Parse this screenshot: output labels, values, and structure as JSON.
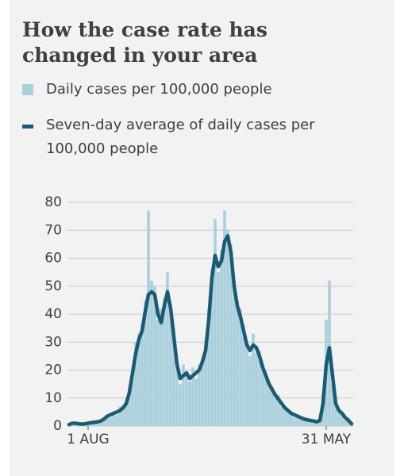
{
  "chart_data": {
    "type": "bar",
    "title": "How the case rate has changed in your area",
    "categories": [
      null,
      null,
      null,
      null,
      null,
      null,
      "1 AUG",
      null,
      null,
      null,
      null,
      null,
      null,
      null,
      null,
      null,
      null,
      null,
      null,
      null,
      null,
      null,
      null,
      null,
      null,
      null,
      null,
      null,
      null,
      null,
      null,
      null,
      null,
      null,
      null,
      null,
      null,
      null,
      null,
      null,
      null,
      null,
      null,
      null,
      null,
      null,
      null,
      null,
      null,
      null,
      null,
      null,
      null,
      null,
      null,
      null,
      null,
      null,
      null,
      null,
      null,
      null,
      null,
      null,
      null,
      null,
      null,
      null,
      null,
      null,
      null,
      null,
      null,
      null,
      null,
      null,
      null,
      null,
      null,
      null,
      null,
      "31 MAY",
      null,
      null,
      null,
      null,
      null,
      null,
      null,
      null
    ],
    "series": [
      {
        "name": "Daily cases per 100,000 people",
        "type": "bar",
        "color": "#a9cfdc",
        "values": [
          0.5,
          1.5,
          1,
          0.5,
          1,
          1.2,
          0.8,
          2,
          1,
          2,
          1.5,
          3,
          4,
          3,
          5,
          4,
          7,
          6,
          9,
          14,
          20,
          30,
          33,
          36,
          45,
          77,
          52,
          50,
          38,
          42,
          46,
          55,
          40,
          35,
          20,
          15,
          22,
          18,
          16,
          21,
          17,
          22,
          24,
          30,
          42,
          56,
          74,
          55,
          63,
          77,
          70,
          65,
          52,
          45,
          42,
          36,
          30,
          25,
          33,
          26,
          27,
          20,
          19,
          14,
          14,
          10,
          11,
          7,
          7,
          5,
          5,
          3,
          4,
          3,
          2,
          3,
          2,
          1,
          2,
          3,
          12,
          38,
          52,
          15,
          7,
          6,
          4,
          2,
          3,
          1
        ]
      },
      {
        "name": "Seven-day average of daily cases per 100,000 people",
        "type": "line",
        "color": "#1b5a73",
        "values": [
          0.5,
          1,
          1,
          0.8,
          0.7,
          0.8,
          1,
          1.2,
          1.3,
          1.5,
          1.8,
          2.5,
          3.5,
          4,
          4.5,
          5,
          5.5,
          6.5,
          8,
          12,
          19,
          26,
          31,
          34,
          41,
          47,
          48,
          47,
          40,
          37,
          43,
          48,
          42,
          32,
          22,
          17,
          18,
          19,
          17,
          18,
          19,
          20,
          23,
          27,
          38,
          53,
          61,
          57,
          59,
          66,
          68,
          62,
          50,
          43,
          39,
          34,
          29,
          27,
          29,
          28,
          25,
          21,
          18,
          15,
          13,
          11,
          9.5,
          8,
          6.5,
          5.5,
          4.5,
          4,
          3.5,
          3,
          2.5,
          2.2,
          2,
          1.8,
          1.5,
          2,
          8,
          22,
          28,
          18,
          8,
          5.5,
          4.5,
          3,
          2,
          0.8
        ]
      }
    ],
    "ylim": [
      0,
      80
    ],
    "yticks": [
      0,
      10,
      20,
      30,
      40,
      50,
      60,
      70,
      80
    ],
    "grid": true
  }
}
